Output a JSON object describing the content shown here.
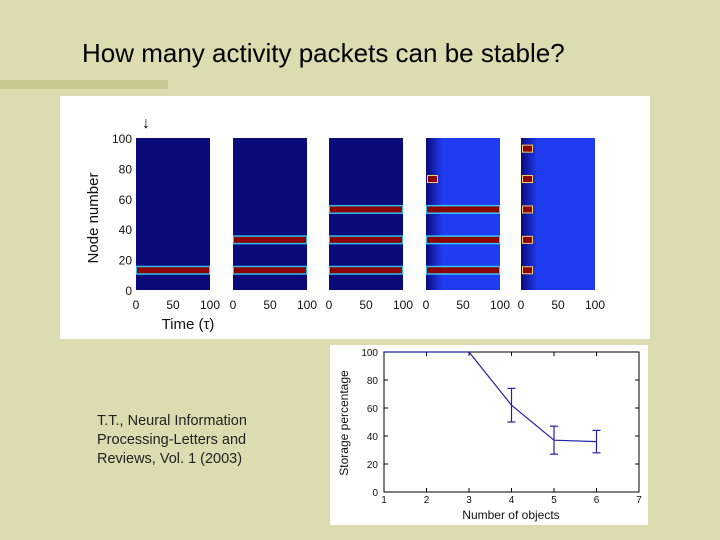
{
  "slide": {
    "title": "How many activity packets can be stable?",
    "citation_lines": [
      "T.T., Neural Information",
      "Processing-Letters and",
      "Reviews, Vol. 1 (2003)"
    ]
  },
  "colors": {
    "background": "#dcdcb0",
    "dark_blue": "#0a0a7a",
    "bright_blue": "#1f3cf0",
    "packet_red": "#8b0000",
    "line_blue": "#2020a8"
  },
  "chart_data": [
    {
      "type": "heatmap",
      "ylabel": "Node number",
      "xlabel": "Time (τ)",
      "yticks": [
        "100",
        "80",
        "60",
        "40",
        "20",
        "0"
      ],
      "xticks": [
        "0",
        "50",
        "100"
      ],
      "ylim": [
        0,
        100
      ],
      "xlim": [
        0,
        100
      ],
      "marker": "↓",
      "panels": [
        {
          "background": "dark",
          "packets": [
            13
          ],
          "dots": false
        },
        {
          "background": "dark",
          "packets": [
            13,
            33
          ],
          "dots": false
        },
        {
          "background": "dark",
          "packets": [
            13,
            33,
            53
          ],
          "dots": false
        },
        {
          "background": "bright",
          "packets": [
            13,
            33,
            53
          ],
          "dots": false,
          "end_dots": [
            13,
            73
          ]
        },
        {
          "background": "bright",
          "packets": [],
          "dots": true,
          "end_dots": [
            13,
            33,
            53,
            73,
            93
          ]
        }
      ]
    },
    {
      "type": "line",
      "xlabel": "Number of objects",
      "ylabel": "Storage percentage",
      "xlim": [
        1,
        7
      ],
      "ylim": [
        0,
        100
      ],
      "xticks": [
        "1",
        "2",
        "3",
        "4",
        "5",
        "6",
        "7"
      ],
      "yticks": [
        "0",
        "20",
        "40",
        "60",
        "80",
        "100"
      ],
      "x": [
        1,
        2,
        3,
        4,
        5,
        6
      ],
      "y": [
        100,
        100,
        100,
        62,
        37,
        36
      ],
      "error": [
        0,
        0,
        0,
        12,
        10,
        8
      ],
      "grid": false
    }
  ]
}
